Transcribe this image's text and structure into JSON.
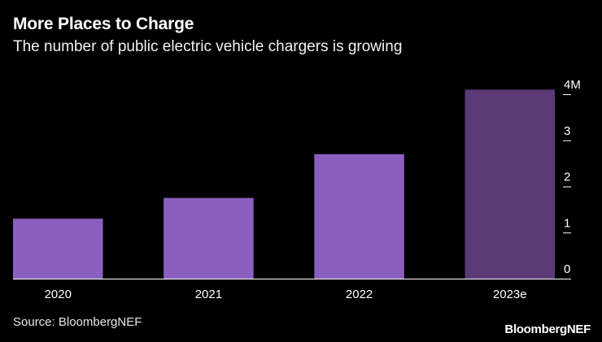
{
  "header": {
    "title": "More Places to Charge",
    "subtitle": "The number of public electric vehicle chargers is growing"
  },
  "footer": {
    "source": "Source: BloombergNEF",
    "brand": "BloombergNEF"
  },
  "chart_data": {
    "type": "bar",
    "title": "More Places to Charge",
    "subtitle": "The number of public electric vehicle chargers is growing",
    "categories": [
      "2020",
      "2021",
      "2022",
      "2023e"
    ],
    "values": [
      1.3,
      1.75,
      2.7,
      4.1
    ],
    "unit": "M",
    "xlabel": "",
    "ylabel": "",
    "ylim": [
      0,
      4
    ],
    "yticks": [
      0,
      1,
      2,
      3,
      4
    ],
    "ytick_labels": [
      "0",
      "1",
      "2",
      "3",
      "4M"
    ],
    "y_axis_side": "right",
    "grid": false,
    "colors": [
      "#8b5fbf",
      "#8b5fbf",
      "#8b5fbf",
      "#5b3a78"
    ]
  }
}
